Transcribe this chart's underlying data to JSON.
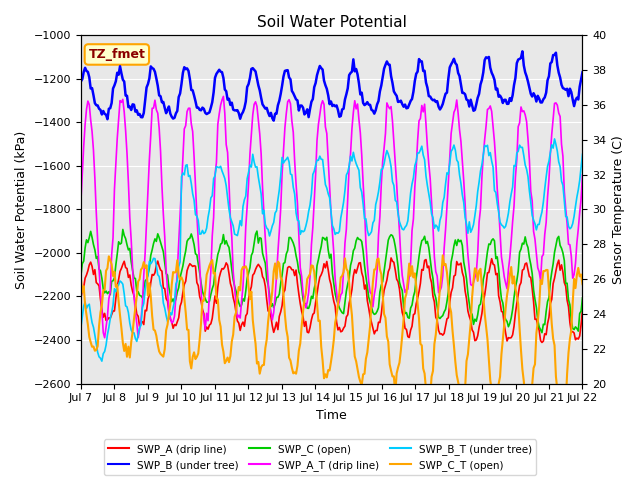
{
  "title": "Soil Water Potential",
  "xlabel": "Time",
  "ylabel_left": "Soil Water Potential (kPa)",
  "ylabel_right": "Sensor Temperature (C)",
  "ylim_left": [
    -2600,
    -1000
  ],
  "ylim_right": [
    20,
    40
  ],
  "yticks_left": [
    -2600,
    -2400,
    -2200,
    -2000,
    -1800,
    -1600,
    -1400,
    -1200,
    -1000
  ],
  "yticks_right": [
    20,
    22,
    24,
    26,
    28,
    30,
    32,
    34,
    36,
    38,
    40
  ],
  "xtick_labels": [
    "Jul 7",
    "Jul 8",
    "Jul 9",
    "Jul 10",
    "Jul 11",
    "Jul 12",
    "Jul 13",
    "Jul 14",
    "Jul 15",
    "Jul 16",
    "Jul 17",
    "Jul 18",
    "Jul 19",
    "Jul 20",
    "Jul 21",
    "Jul 22"
  ],
  "n_days": 15,
  "pts_per_day": 24,
  "annotation_text": "TZ_fmet",
  "annotation_color": "#8B0000",
  "annotation_bg": "#FFFFCC",
  "annotation_border": "#FFA500",
  "bg_color": "#E8E8E8",
  "line_colors": {
    "SWP_A": "#FF0000",
    "SWP_B": "#0000FF",
    "SWP_C": "#00CC00",
    "SWP_A_T": "#FF00FF",
    "SWP_B_T": "#00CCFF",
    "SWP_C_T": "#FFA500"
  },
  "legend_labels": [
    "SWP_A (drip line)",
    "SWP_B (under tree)",
    "SWP_C (open)",
    "SWP_A_T (drip line)",
    "SWP_B_T (under tree)",
    "SWP_C_T (open)"
  ]
}
